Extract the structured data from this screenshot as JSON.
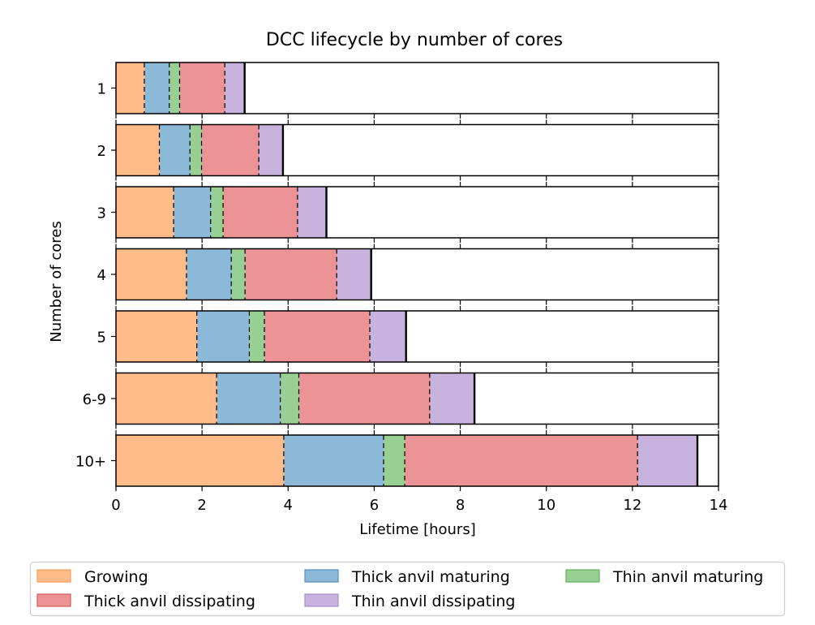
{
  "chart_data": {
    "type": "bar",
    "orientation": "horizontal",
    "stacked": true,
    "title": "DCC lifecycle by number of cores",
    "xlabel": "Lifetime [hours]",
    "ylabel": "Number of cores",
    "xlim": [
      0,
      14
    ],
    "x_ticks": [
      "0",
      "2",
      "4",
      "6",
      "8",
      "10",
      "12",
      "14"
    ],
    "categories": [
      "1",
      "2",
      "3",
      "4",
      "5",
      "6-9",
      "10+"
    ],
    "series": [
      {
        "name": "Growing",
        "color": "#ffbb88",
        "edge": "#f5a05a",
        "values": [
          0.67,
          1.02,
          1.35,
          1.65,
          1.89,
          2.35,
          3.91
        ]
      },
      {
        "name": "Thick anvil maturing",
        "color": "#8db9d8",
        "edge": "#4f8fc0",
        "values": [
          0.58,
          0.71,
          0.86,
          1.04,
          1.22,
          1.48,
          2.32
        ]
      },
      {
        "name": "Thin anvil maturing",
        "color": "#98d094",
        "edge": "#5cb15c",
        "values": [
          0.24,
          0.27,
          0.29,
          0.32,
          0.35,
          0.43,
          0.49
        ]
      },
      {
        "name": "Thick anvil dissipating",
        "color": "#eb9395",
        "edge": "#d9575c",
        "values": [
          1.05,
          1.33,
          1.73,
          2.13,
          2.45,
          3.04,
          5.41
        ]
      },
      {
        "name": "Thin anvil dissipating",
        "color": "#c8b3de",
        "edge": "#a98bcc",
        "values": [
          0.45,
          0.55,
          0.66,
          0.79,
          0.83,
          1.03,
          1.38
        ]
      }
    ],
    "legend_position": "bottom"
  }
}
